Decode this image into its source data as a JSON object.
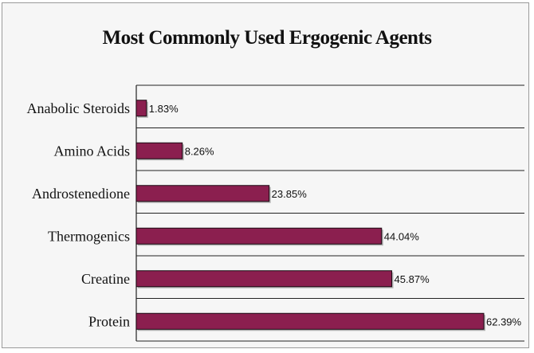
{
  "chart_data": {
    "type": "bar",
    "orientation": "horizontal",
    "title": "Most Commonly Used Ergogenic Agents",
    "categories": [
      "Anabolic Steroids",
      "Amino Acids",
      "Androstenedione",
      "Thermogenics",
      "Creatine",
      "Protein"
    ],
    "values": [
      1.83,
      8.26,
      23.85,
      44.04,
      45.87,
      62.39
    ],
    "value_labels": [
      "1.83%",
      "8.26%",
      "23.85%",
      "44.04%",
      "45.87%",
      "62.39%"
    ],
    "xlim": [
      0,
      62.39
    ],
    "grid": true,
    "bar_color": "#8b1f4f",
    "bar_edge_color": "#1a0a12",
    "xlabel": "",
    "ylabel": ""
  }
}
